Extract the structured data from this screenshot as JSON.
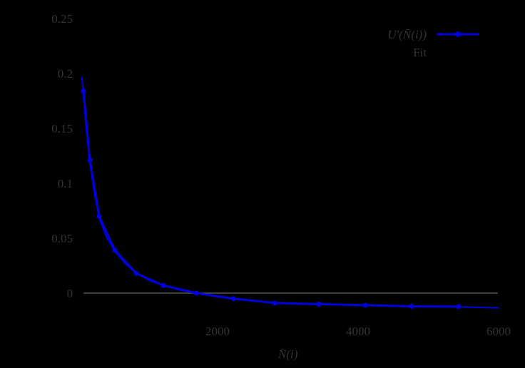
{
  "chart_data": {
    "type": "line",
    "title": "",
    "xlabel": "N̄(i)",
    "ylabel": "",
    "xlim": [
      0,
      6000
    ],
    "ylim": [
      -0.02,
      0.25
    ],
    "x_ticks": [
      2000,
      4000,
      6000
    ],
    "x_tick_labels": [
      "2000",
      "4000",
      "6000"
    ],
    "y_ticks": [
      0,
      0.05,
      0.1,
      0.15,
      0.2,
      0.25
    ],
    "y_tick_labels": [
      "0",
      "0.05",
      "0.1",
      "0.15",
      "0.2",
      "0.25"
    ],
    "grid": false,
    "zero_line": true,
    "legend_position": "upper right",
    "series": [
      {
        "name": "U′(N̄(i))",
        "color": "#0000dd",
        "marker": "circle",
        "x": [
          91,
          183,
          315,
          538,
          843,
          1228,
          1695,
          2223,
          2812,
          3442,
          4102,
          4761,
          5431
        ],
        "values": [
          0.184,
          0.121,
          0.07,
          0.039,
          0.018,
          0.007,
          0.0,
          -0.005,
          -0.009,
          -0.01,
          -0.011,
          -0.012,
          -0.0123
        ]
      },
      {
        "name": "Fit",
        "color": "#0000dd",
        "marker": "none",
        "x": [
          70,
          91,
          130,
          183,
          250,
          315,
          420,
          538,
          700,
          843,
          1050,
          1228,
          1450,
          1695,
          2000,
          2223,
          2500,
          2812,
          3442,
          4102,
          4761,
          5431,
          6000
        ],
        "values": [
          0.197,
          0.18,
          0.15,
          0.118,
          0.09,
          0.068,
          0.051,
          0.038,
          0.026,
          0.018,
          0.011,
          0.007,
          0.003,
          0.0,
          -0.003,
          -0.005,
          -0.007,
          -0.009,
          -0.01,
          -0.011,
          -0.012,
          -0.0125,
          -0.0135
        ]
      }
    ]
  },
  "legend": {
    "series1_label_main": "U′(",
    "series1_label_N": "N̄",
    "series1_label_rest": "(i))",
    "series2_label": "Fit"
  },
  "axes": {
    "xlabel_N": "N̄",
    "xlabel_rest": "(i)"
  },
  "colors": {
    "background": "#000000",
    "series": "#0000dd",
    "text": "#333333",
    "zero_line": "#555555"
  }
}
